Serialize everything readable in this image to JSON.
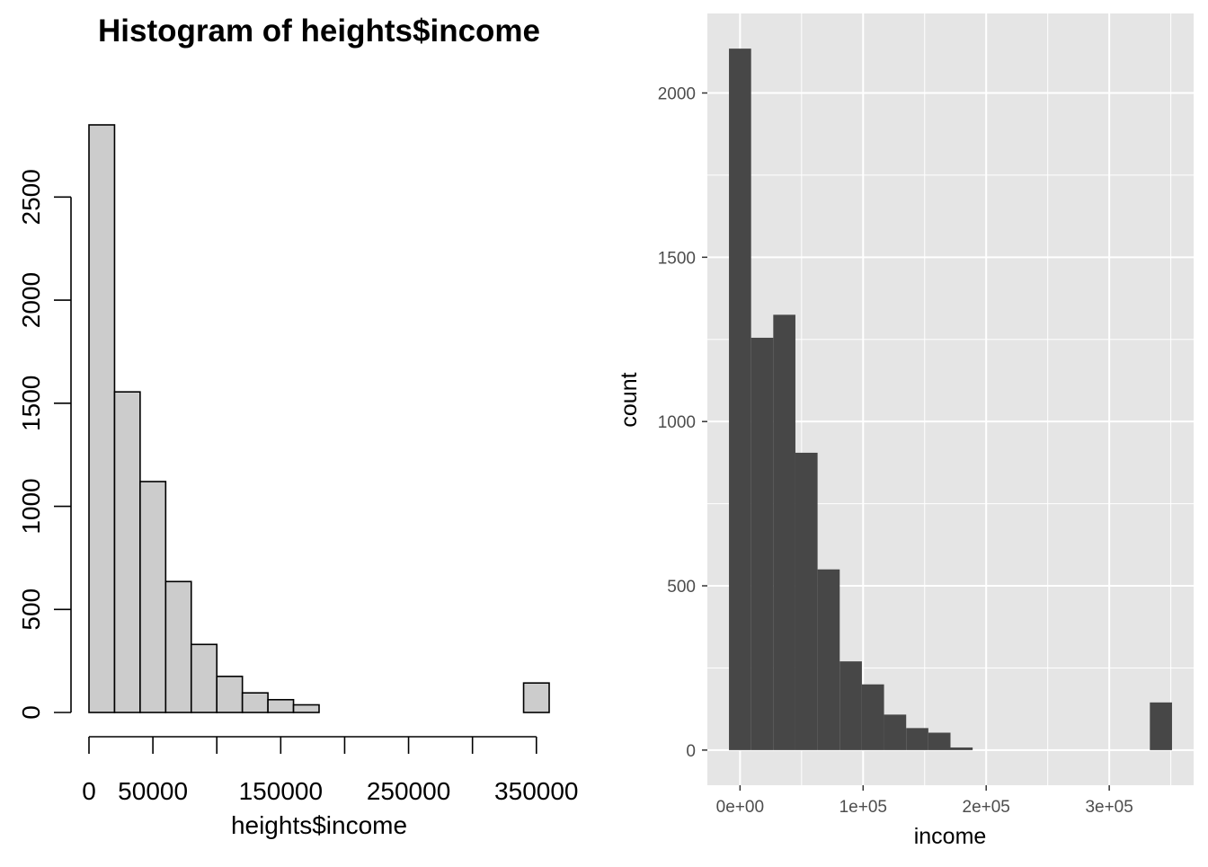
{
  "chart_data": [
    {
      "type": "bar",
      "style": "base-r-histogram",
      "title": "Histogram of heights$income",
      "xlabel": "heights$income",
      "ylabel": "",
      "bin_width": 20000,
      "bins": [
        {
          "x0": 0,
          "x1": 20000,
          "count": 2850
        },
        {
          "x0": 20000,
          "x1": 40000,
          "count": 1555
        },
        {
          "x0": 40000,
          "x1": 60000,
          "count": 1120
        },
        {
          "x0": 60000,
          "x1": 80000,
          "count": 635
        },
        {
          "x0": 80000,
          "x1": 100000,
          "count": 330
        },
        {
          "x0": 100000,
          "x1": 120000,
          "count": 175
        },
        {
          "x0": 120000,
          "x1": 140000,
          "count": 95
        },
        {
          "x0": 140000,
          "x1": 160000,
          "count": 62
        },
        {
          "x0": 160000,
          "x1": 180000,
          "count": 37
        },
        {
          "x0": 180000,
          "x1": 200000,
          "count": 0
        },
        {
          "x0": 200000,
          "x1": 220000,
          "count": 0
        },
        {
          "x0": 220000,
          "x1": 240000,
          "count": 0
        },
        {
          "x0": 240000,
          "x1": 260000,
          "count": 0
        },
        {
          "x0": 260000,
          "x1": 280000,
          "count": 0
        },
        {
          "x0": 280000,
          "x1": 300000,
          "count": 0
        },
        {
          "x0": 300000,
          "x1": 320000,
          "count": 0
        },
        {
          "x0": 320000,
          "x1": 340000,
          "count": 0
        },
        {
          "x0": 340000,
          "x1": 360000,
          "count": 143
        }
      ],
      "xlim": [
        0,
        360000
      ],
      "ylim": [
        0,
        2850
      ],
      "x_ticks": [
        0,
        50000,
        100000,
        150000,
        200000,
        250000,
        300000,
        350000
      ],
      "x_tick_labels": [
        {
          "value": 0,
          "label": "0"
        },
        {
          "value": 50000,
          "label": "50000"
        },
        {
          "value": 150000,
          "label": "150000"
        },
        {
          "value": 250000,
          "label": "250000"
        },
        {
          "value": 350000,
          "label": "350000"
        }
      ],
      "y_ticks": [
        0,
        500,
        1000,
        1500,
        2000,
        2500
      ],
      "y_tick_labels": [
        "0",
        "500",
        "1000",
        "1500",
        "2000",
        "2500"
      ],
      "bar_fill": "#cccccc",
      "bar_stroke": "#000000",
      "grid": false
    },
    {
      "type": "bar",
      "style": "ggplot2-histogram",
      "xlabel": "income",
      "ylabel": "count",
      "bin_width": 18000,
      "bins": [
        {
          "x0": -9000,
          "x1": 9000,
          "count": 2135
        },
        {
          "x0": 9000,
          "x1": 27000,
          "count": 1255
        },
        {
          "x0": 27000,
          "x1": 45000,
          "count": 1325
        },
        {
          "x0": 45000,
          "x1": 63000,
          "count": 905
        },
        {
          "x0": 63000,
          "x1": 81000,
          "count": 550
        },
        {
          "x0": 81000,
          "x1": 99000,
          "count": 270
        },
        {
          "x0": 99000,
          "x1": 117000,
          "count": 200
        },
        {
          "x0": 117000,
          "x1": 135000,
          "count": 108
        },
        {
          "x0": 135000,
          "x1": 153000,
          "count": 67
        },
        {
          "x0": 153000,
          "x1": 171000,
          "count": 53
        },
        {
          "x0": 171000,
          "x1": 189000,
          "count": 8
        },
        {
          "x0": 189000,
          "x1": 207000,
          "count": 0
        },
        {
          "x0": 207000,
          "x1": 225000,
          "count": 0
        },
        {
          "x0": 225000,
          "x1": 243000,
          "count": 0
        },
        {
          "x0": 243000,
          "x1": 261000,
          "count": 0
        },
        {
          "x0": 261000,
          "x1": 279000,
          "count": 0
        },
        {
          "x0": 279000,
          "x1": 297000,
          "count": 0
        },
        {
          "x0": 297000,
          "x1": 315000,
          "count": 0
        },
        {
          "x0": 315000,
          "x1": 333000,
          "count": 0
        },
        {
          "x0": 333000,
          "x1": 351000,
          "count": 145
        }
      ],
      "xlim": [
        -26550,
        368550
      ],
      "ylim": [
        -107,
        2242
      ],
      "x_major_ticks": [
        0,
        100000,
        200000,
        300000
      ],
      "x_minor_ticks": [
        50000,
        150000,
        250000,
        350000
      ],
      "x_tick_labels": [
        "0e+00",
        "1e+05",
        "2e+05",
        "3e+05"
      ],
      "y_major_ticks": [
        0,
        500,
        1000,
        1500,
        2000
      ],
      "y_minor_ticks": [
        250,
        750,
        1250,
        1750
      ],
      "y_tick_labels": [
        "0",
        "500",
        "1000",
        "1500",
        "2000"
      ],
      "panel_background": "#e5e5e5",
      "grid_color": "#ffffff",
      "bar_fill": "#474747",
      "grid": true
    }
  ]
}
